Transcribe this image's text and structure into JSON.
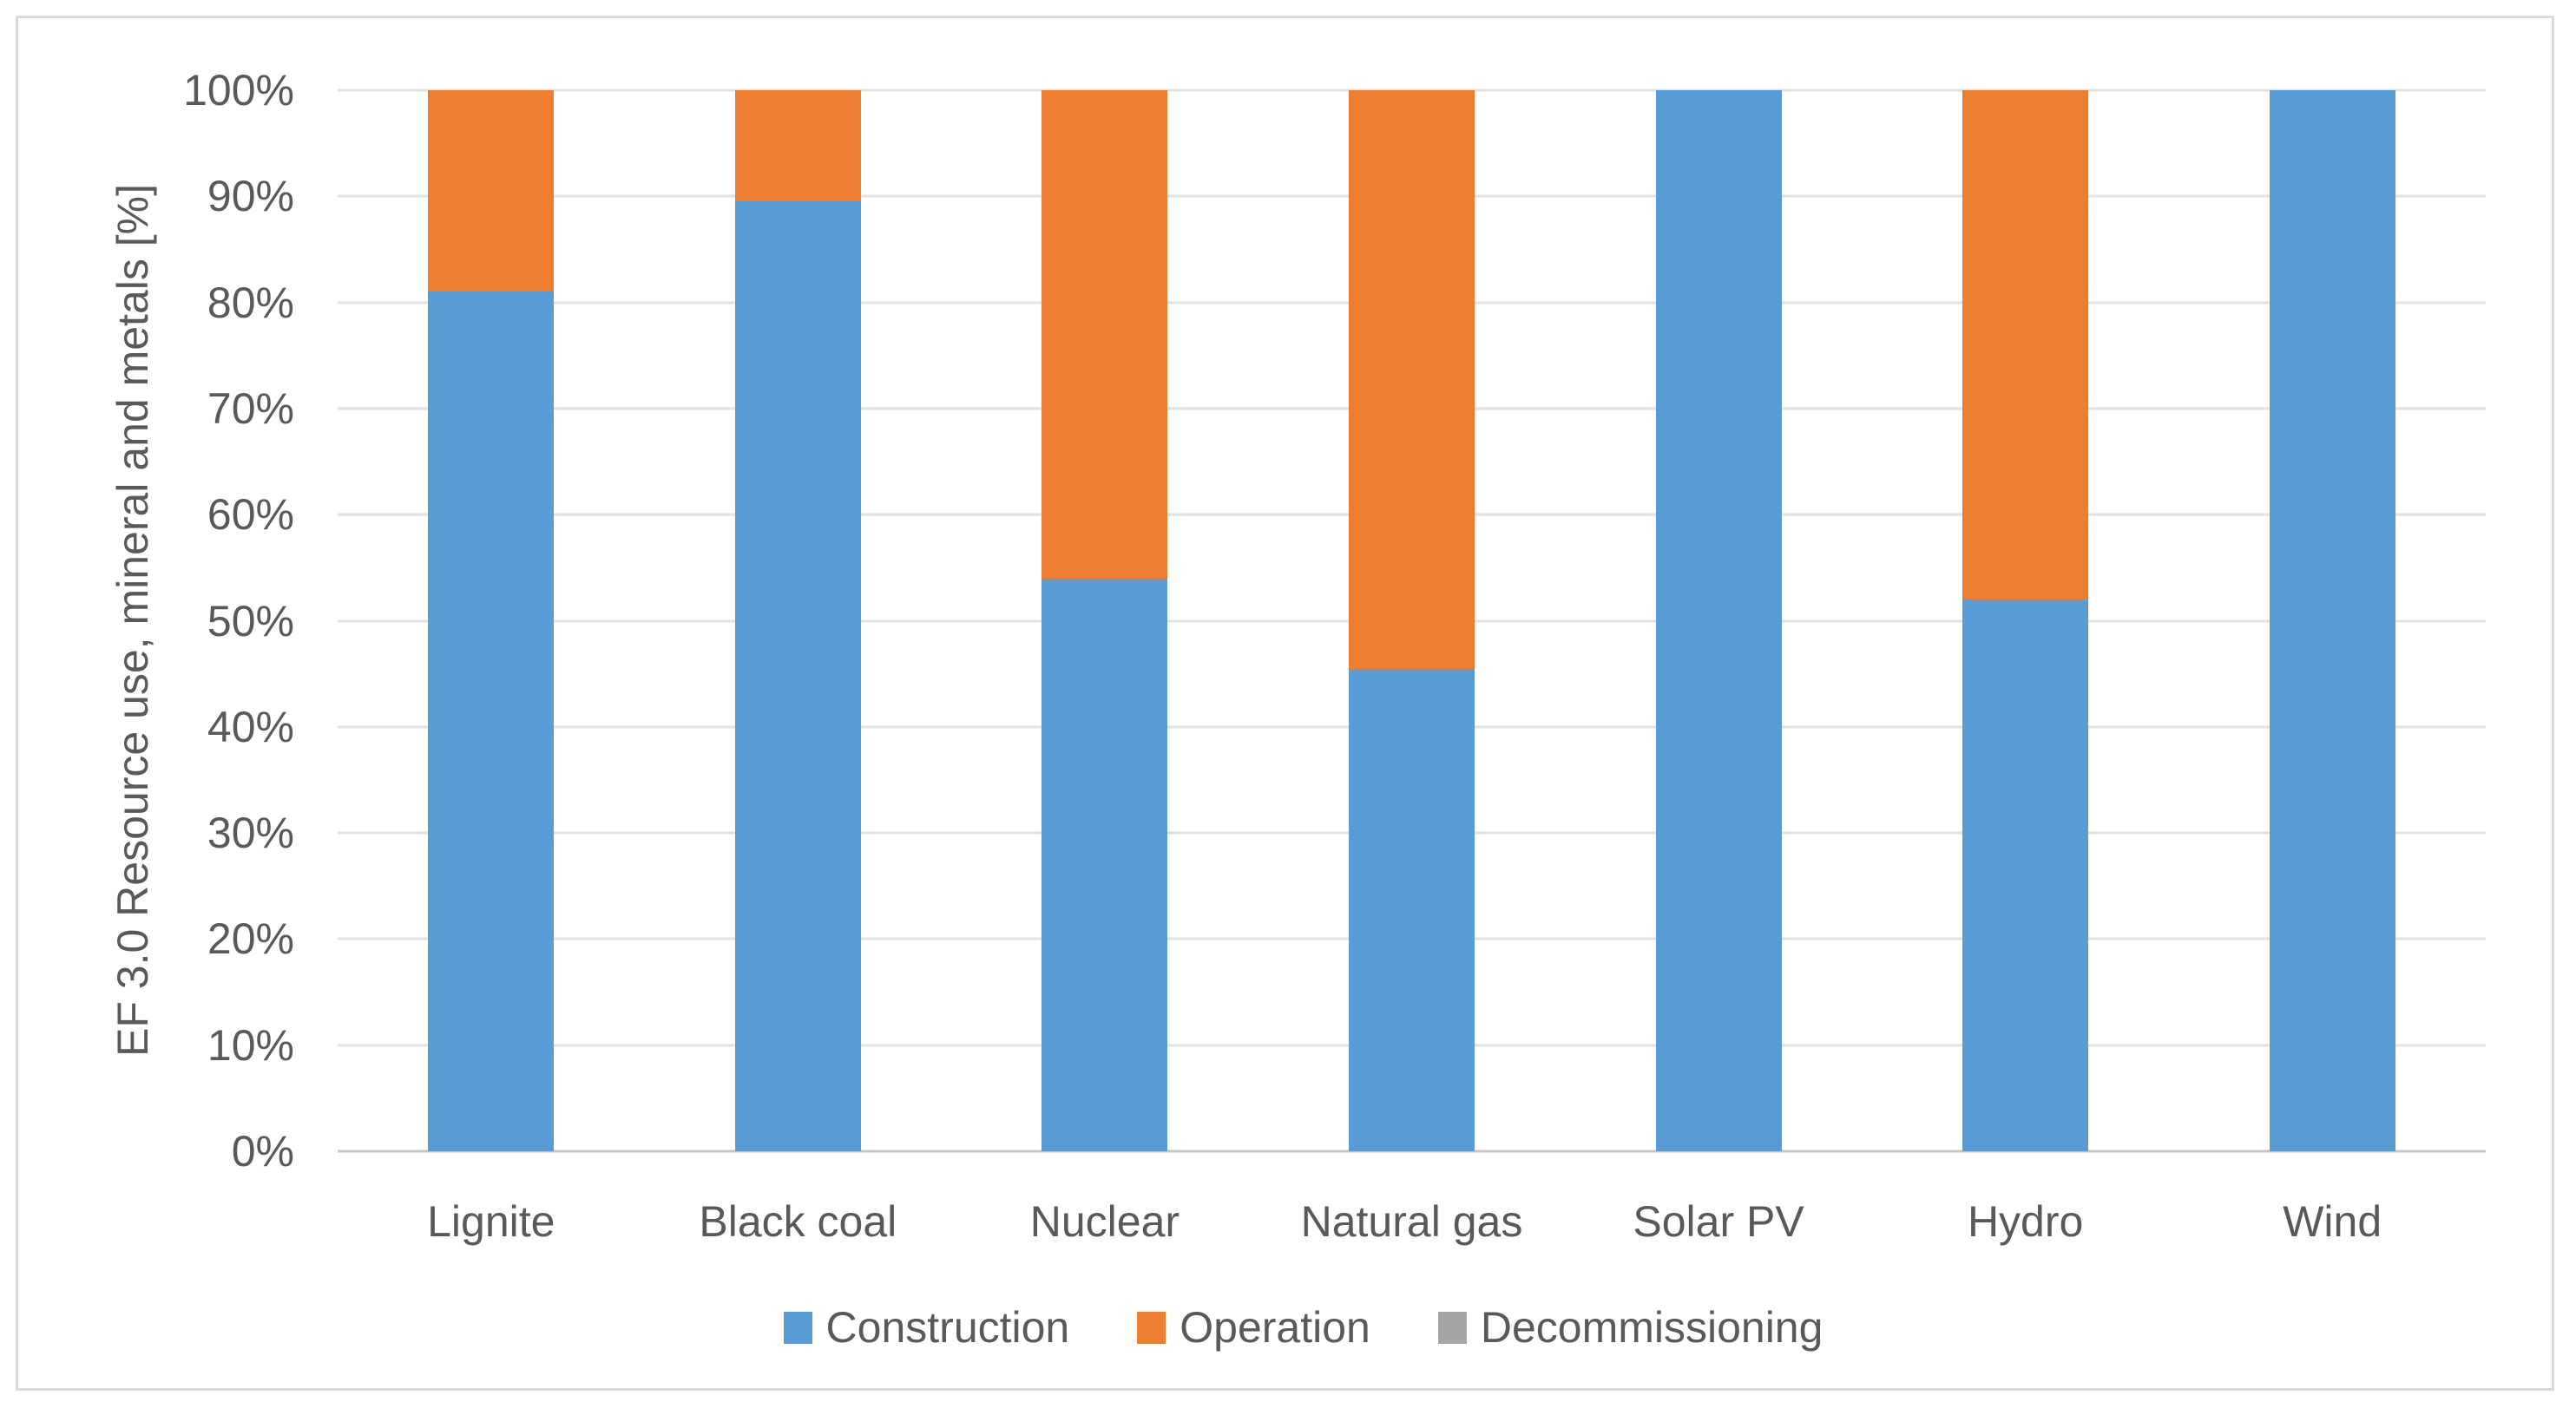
{
  "chart_data": {
    "type": "bar",
    "stacked": true,
    "orientation": "vertical",
    "title": "",
    "xlabel": "",
    "ylabel": "EF 3.0 Resource use, mineral and metals [%]",
    "ylim": [
      0,
      100
    ],
    "y_tick_step_percent": 10,
    "y_ticks_top_to_bottom": [
      "100%",
      "90%",
      "80%",
      "70%",
      "60%",
      "50%",
      "40%",
      "30%",
      "20%",
      "10%",
      "0%"
    ],
    "grid": "horizontal",
    "legend_position": "bottom",
    "categories": [
      "Lignite",
      "Black coal",
      "Nuclear",
      "Natural gas",
      "Solar PV",
      "Hydro",
      "Wind"
    ],
    "series": [
      {
        "name": "Construction",
        "color": "#5B9BD5",
        "values": [
          81,
          89.5,
          54,
          45.5,
          100,
          52,
          100
        ]
      },
      {
        "name": "Operation",
        "color": "#ED7D31",
        "values": [
          19,
          10.5,
          46,
          54.5,
          0,
          48,
          0
        ]
      },
      {
        "name": "Decommissioning",
        "color": "#A5A5A5",
        "values": [
          0,
          0,
          0,
          0,
          0,
          0,
          0
        ]
      }
    ]
  },
  "style_colors": {
    "frame_border": "#D9D9D9",
    "gridline": "#E2E2E2",
    "zero_axis_line": "#C6C6C6",
    "text": "#595959",
    "background": "#FFFFFF"
  }
}
